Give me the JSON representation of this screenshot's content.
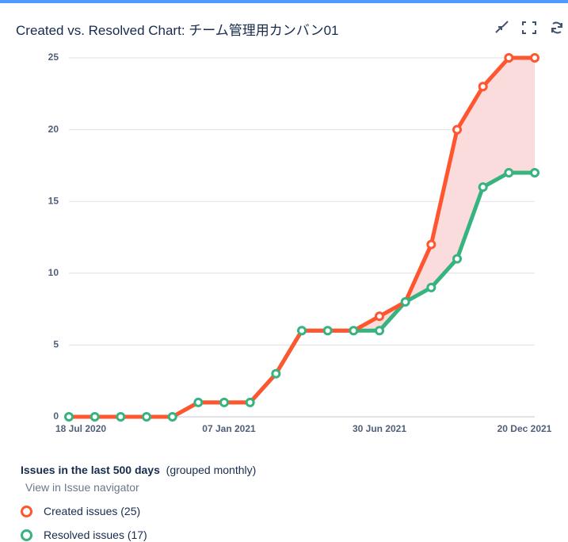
{
  "title": "Created vs. Resolved Chart: チーム管理用カンバン01",
  "legend": {
    "period": "Issues in the last 500 days",
    "grouping": "(grouped monthly)",
    "link": "View in Issue navigator"
  },
  "chart_data": {
    "type": "line",
    "categories": [
      "18 Jul 2020",
      null,
      null,
      null,
      null,
      null,
      "07 Jan 2021",
      null,
      null,
      null,
      null,
      null,
      "30 Jun 2021",
      null,
      null,
      null,
      null,
      null,
      "20 Dec 2021"
    ],
    "series": [
      {
        "name": "Created issues (25)",
        "color": "#ff5630",
        "values": [
          0,
          0,
          0,
          0,
          0,
          1,
          1,
          1,
          3,
          6,
          6,
          6,
          7,
          8,
          12,
          20,
          23,
          25,
          25
        ]
      },
      {
        "name": "Resolved issues (17)",
        "color": "#36b37e",
        "values": [
          0,
          0,
          0,
          0,
          0,
          1,
          1,
          1,
          3,
          6,
          6,
          6,
          6,
          8,
          9,
          11,
          16,
          17,
          17
        ]
      }
    ],
    "fill_between": "#f9dcdb",
    "ylim": [
      0,
      25
    ],
    "yticks": [
      0,
      5,
      10,
      15,
      20,
      25
    ],
    "grid": true
  }
}
